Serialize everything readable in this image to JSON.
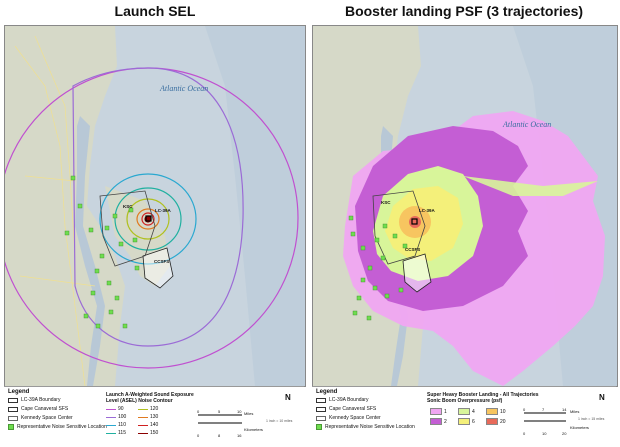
{
  "left_panel": {
    "title": "Launch SEL",
    "ocean_label": "Atlantic Ocean",
    "site_labels": {
      "pad": "LC-39A",
      "ksc": "KSC",
      "ccsfs": "CCSFS"
    },
    "legend": {
      "heading": "Legend",
      "items": [
        "LC-39A Boundary",
        "Cape Canaveral SFS",
        "Kennedy Space Center",
        "Representative Noise Sensitive Location"
      ],
      "contour_title_line1": "Launch A-Weighted Sound Exposure",
      "contour_title_line2": "Level (ASEL) Noise Contour",
      "contours": [
        {
          "label": "90",
          "color": "#c050d0"
        },
        {
          "label": "120",
          "color": "#b0c020"
        },
        {
          "label": "100",
          "color": "#9b6bd6"
        },
        {
          "label": "130",
          "color": "#e07a20"
        },
        {
          "label": "110",
          "color": "#2aa8d0"
        },
        {
          "label": "140",
          "color": "#d02020"
        },
        {
          "label": "115",
          "color": "#20b0a0"
        },
        {
          "label": "150",
          "color": "#8b0000"
        }
      ],
      "scale_miles_label": "Miles",
      "scale_km_label": "Kilometers",
      "scale_miles": [
        "0",
        "5",
        "10"
      ],
      "scale_km": [
        "0",
        "8",
        "16"
      ],
      "scale_ratio": "1 inch = 10 miles",
      "north": "N"
    }
  },
  "right_panel": {
    "title": "Booster landing PSF (3 trajectories)",
    "ocean_label": "Atlantic Ocean",
    "site_labels": {
      "pad": "LC-39A",
      "ksc": "KSC",
      "ccsfs": "CCSFS"
    },
    "legend": {
      "heading": "Legend",
      "items": [
        "LC-39A Boundary",
        "Cape Canaveral SFS",
        "Kennedy Space Center",
        "Representative Noise Sensitive Location"
      ],
      "contour_title_line1": "Super Heavy Booster Landing - All Trajectories",
      "contour_title_line2": "Sonic Boom Overpressure (psf)",
      "contours": [
        {
          "label": "1",
          "color": "#f0a6f2"
        },
        {
          "label": "4",
          "color": "#d8f59a"
        },
        {
          "label": "10",
          "color": "#f7c560"
        },
        {
          "label": "2",
          "color": "#c45ed4"
        },
        {
          "label": "6",
          "color": "#f4f07a"
        },
        {
          "label": "20",
          "color": "#e86a5a"
        }
      ],
      "scale_miles_label": "Miles",
      "scale_km_label": "Kilometers",
      "scale_miles": [
        "0",
        "7",
        "14"
      ],
      "scale_km": [
        "0",
        "10",
        "20"
      ],
      "scale_ratio": "1 inch = 15 miles",
      "north": "N"
    }
  },
  "colors": {
    "ocean": "#c8d4de",
    "land": "#d4d8c8",
    "green_site": "#6fdd4f"
  }
}
